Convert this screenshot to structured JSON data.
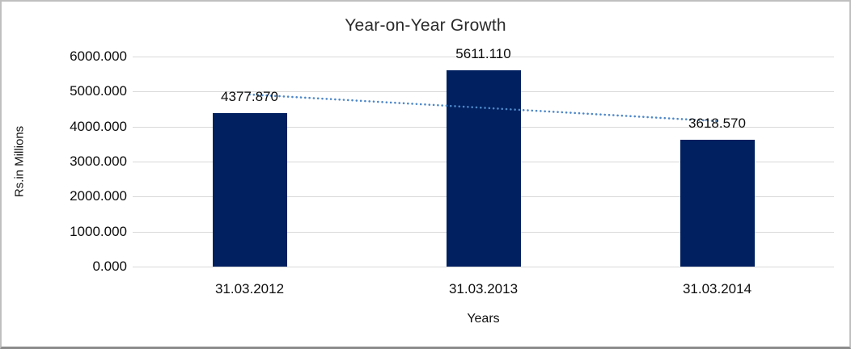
{
  "chart_data": {
    "type": "bar",
    "title": "Year-on-Year Growth",
    "xlabel": "Years",
    "ylabel": "Rs.in Millions",
    "categories": [
      "31.03.2012",
      "31.03.2013",
      "31.03.2014"
    ],
    "values": [
      4377.87,
      5611.11,
      3618.57
    ],
    "value_labels": [
      "4377.870",
      "5611.110",
      "3618.570"
    ],
    "ylim": [
      0,
      6000
    ],
    "ytick_labels": [
      "0.000",
      "1000.000",
      "2000.000",
      "3000.000",
      "4000.000",
      "5000.000",
      "6000.000"
    ],
    "grid": true,
    "legend_position": "none",
    "bar_color": "#002060",
    "gridline_color": "#d9d9d9",
    "trendline": {
      "type": "linear",
      "style": "dotted",
      "color": "#4d87c8"
    }
  }
}
